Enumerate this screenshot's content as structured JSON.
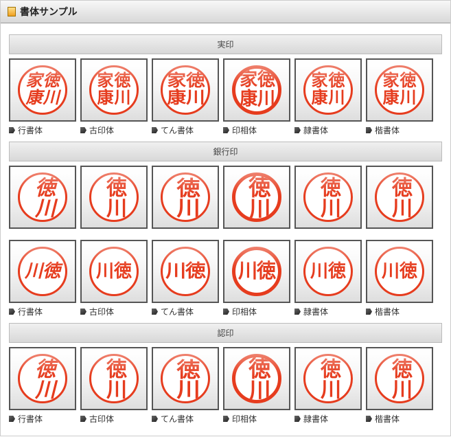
{
  "header": {
    "title": "書体サンプル"
  },
  "sections": [
    {
      "title": "実印",
      "rows": 1,
      "char_mode": "full"
    },
    {
      "title": "銀行印",
      "rows": 2,
      "char_mode": "two"
    },
    {
      "title": "認印",
      "rows": 1,
      "char_mode": "two"
    }
  ],
  "fonts": [
    {
      "key": "gyou",
      "label": "行書体"
    },
    {
      "key": "koin",
      "label": "古印体"
    },
    {
      "key": "tenn",
      "label": "てん書体"
    },
    {
      "key": "insou",
      "label": "印相体"
    },
    {
      "key": "rei",
      "label": "隷書体"
    },
    {
      "key": "kai",
      "label": "楷書体"
    }
  ],
  "chars": {
    "full_cols": [
      "家康",
      "徳川"
    ],
    "two_vertical": "徳川",
    "two_horizontal": "川徳"
  },
  "colors": {
    "seal": "#e63c1e",
    "frame_border": "#555555",
    "bg_gradient_top": "#ffffff",
    "bg_gradient_bottom": "#dedede"
  }
}
